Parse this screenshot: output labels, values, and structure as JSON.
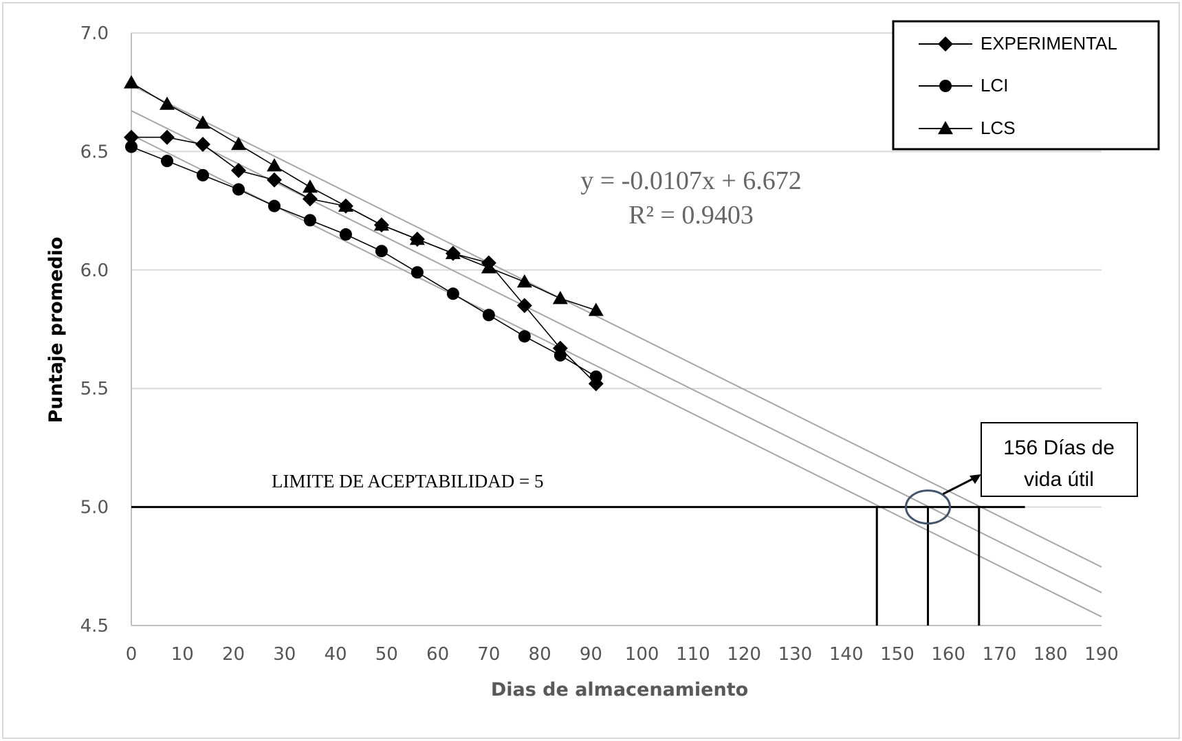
{
  "chart_data": {
    "type": "line",
    "xlabel": "Dias de almacenamiento",
    "ylabel": "Puntaje promedio",
    "xlim": [
      0,
      190
    ],
    "ylim": [
      4.5,
      7.0
    ],
    "x_ticks": [
      "0",
      "10",
      "20",
      "30",
      "40",
      "50",
      "60",
      "70",
      "80",
      "90",
      "100",
      "110",
      "120",
      "130",
      "140",
      "150",
      "160",
      "170",
      "180",
      "190"
    ],
    "y_ticks": [
      "4.5",
      "5.0",
      "5.5",
      "6.0",
      "6.5",
      "7.0"
    ],
    "grid": "horizontal",
    "legend_position": "top-right",
    "series": [
      {
        "name": "EXPERIMENTAL",
        "marker": "diamond",
        "x": [
          0,
          7,
          14,
          21,
          28,
          35,
          42,
          49,
          56,
          63,
          70,
          77,
          84,
          91
        ],
        "y": [
          6.56,
          6.56,
          6.53,
          6.42,
          6.38,
          6.3,
          6.27,
          6.19,
          6.13,
          6.07,
          6.03,
          5.85,
          5.67,
          5.52
        ]
      },
      {
        "name": "LCI",
        "marker": "circle",
        "x": [
          0,
          7,
          14,
          21,
          28,
          35,
          42,
          49,
          56,
          63,
          70,
          77,
          84,
          91
        ],
        "y": [
          6.52,
          6.46,
          6.4,
          6.34,
          6.27,
          6.21,
          6.15,
          6.08,
          5.99,
          5.9,
          5.81,
          5.72,
          5.64,
          5.55
        ]
      },
      {
        "name": "LCS",
        "marker": "triangle",
        "x": [
          0,
          7,
          14,
          21,
          28,
          35,
          42,
          49,
          56,
          63,
          70,
          77,
          84,
          91
        ],
        "y": [
          6.79,
          6.7,
          6.62,
          6.53,
          6.44,
          6.35,
          6.27,
          6.19,
          6.13,
          6.07,
          6.01,
          5.95,
          5.88,
          5.83
        ]
      }
    ],
    "trend_lines": [
      {
        "series": "LCS",
        "intercept": 6.78,
        "slope": -0.0107
      },
      {
        "series": "EXPERIMENTAL",
        "intercept": 6.672,
        "slope": -0.0107
      },
      {
        "series": "LCI",
        "intercept": 6.57,
        "slope": -0.0107
      }
    ],
    "equation_line1": "y = -0.0107x + 6.672",
    "equation_line2": "R² = 0.9403",
    "limit_label": "LIMITE DE ACEPTABILIDAD = 5",
    "limit_value": 5.0,
    "limit_x_end": 175,
    "shelf_life_markers": [
      146,
      156,
      166
    ],
    "callout_line1": "156 Días de",
    "callout_line2": "vida útil",
    "colors": {
      "series": "#000000",
      "trend": "#a6a6a6",
      "grid": "#d9d9d9",
      "axis": "#bfbfbf",
      "ellipse": "#44546a"
    }
  }
}
